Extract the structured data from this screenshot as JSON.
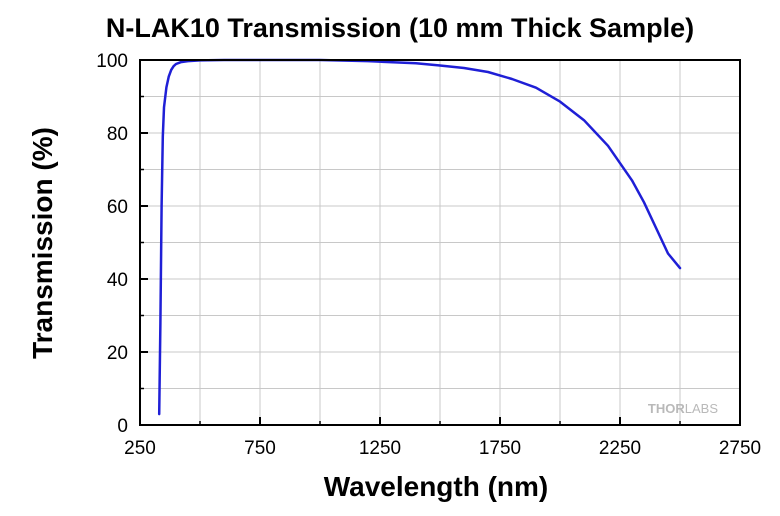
{
  "chart_data": {
    "type": "line",
    "title": "N-LAK10 Transmission (10 mm Thick Sample)",
    "xlabel": "Wavelength (nm)",
    "ylabel": "Transmission (%)",
    "xlim": [
      250,
      2750
    ],
    "ylim": [
      0,
      100
    ],
    "x_ticks": [
      250,
      750,
      1250,
      1750,
      2250,
      2750
    ],
    "y_ticks": [
      0,
      20,
      40,
      60,
      80,
      100
    ],
    "grid": true,
    "legend": "none",
    "series": [
      {
        "color": "#1f1fd6",
        "x": [
          330,
          335,
          340,
          345,
          350,
          360,
          370,
          380,
          390,
          400,
          420,
          450,
          500,
          600,
          800,
          1000,
          1200,
          1400,
          1500,
          1600,
          1700,
          1800,
          1900,
          2000,
          2100,
          2200,
          2300,
          2350,
          2400,
          2450,
          2500
        ],
        "y": [
          3,
          28,
          60,
          79,
          87,
          92.5,
          95.5,
          97.3,
          98.3,
          98.9,
          99.4,
          99.7,
          99.9,
          100,
          100,
          100,
          99.7,
          99.1,
          98.5,
          97.8,
          96.7,
          94.8,
          92.4,
          88.6,
          83.5,
          76.5,
          67,
          61,
          54,
          47,
          43
        ]
      }
    ],
    "watermark": {
      "bold_part": "THOR",
      "light_part": "LABS"
    }
  }
}
